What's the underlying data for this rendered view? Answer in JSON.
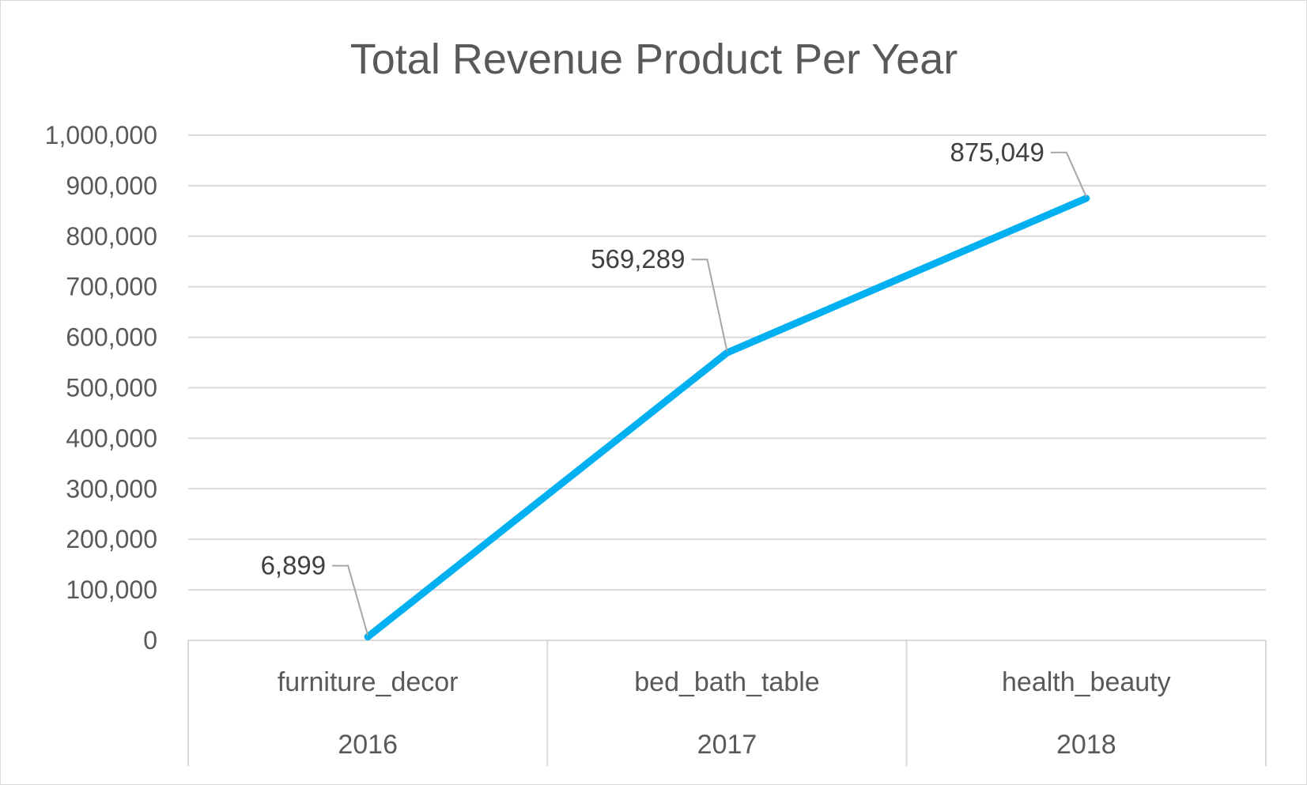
{
  "chart_data": {
    "type": "line",
    "title": "Total Revenue Product Per Year",
    "xlabel": "",
    "ylabel": "",
    "categories": [
      {
        "label": "furniture_decor",
        "group": "2016"
      },
      {
        "label": "bed_bath_table",
        "group": "2017"
      },
      {
        "label": "health_beauty",
        "group": "2018"
      }
    ],
    "series": [
      {
        "values": [
          6899,
          569289,
          875049
        ],
        "data_labels": [
          "6,899",
          "569,289",
          "875,049"
        ],
        "color": "#00B0F0"
      }
    ],
    "ylim": [
      0,
      1000000
    ],
    "y_ticks": [
      0,
      100000,
      200000,
      300000,
      400000,
      500000,
      600000,
      700000,
      800000,
      900000,
      1000000
    ],
    "y_tick_labels": [
      "0",
      "100,000",
      "200,000",
      "300,000",
      "400,000",
      "500,000",
      "600,000",
      "700,000",
      "800,000",
      "900,000",
      "1,000,000"
    ],
    "grid": true,
    "legend": "none",
    "colors": {
      "line": "#00B0F0",
      "grid": "#d9d9d9",
      "text": "#595959",
      "leader": "#a6a6a6"
    }
  }
}
